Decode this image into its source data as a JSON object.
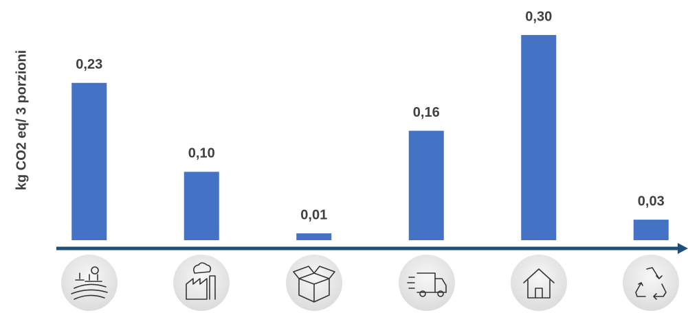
{
  "chart_data": {
    "type": "bar",
    "y_label": "kg CO2 eq/ 3 porzioni",
    "categories": [
      null,
      null,
      null,
      null,
      null,
      null
    ],
    "values": [
      0.23,
      0.1,
      0.01,
      0.16,
      0.3,
      0.03
    ],
    "value_labels": [
      "0,23",
      "0,10",
      "0,01",
      "0,16",
      "0,30",
      "0,03"
    ],
    "color": "#4472c4",
    "ylim": [
      0,
      0.3
    ]
  }
}
